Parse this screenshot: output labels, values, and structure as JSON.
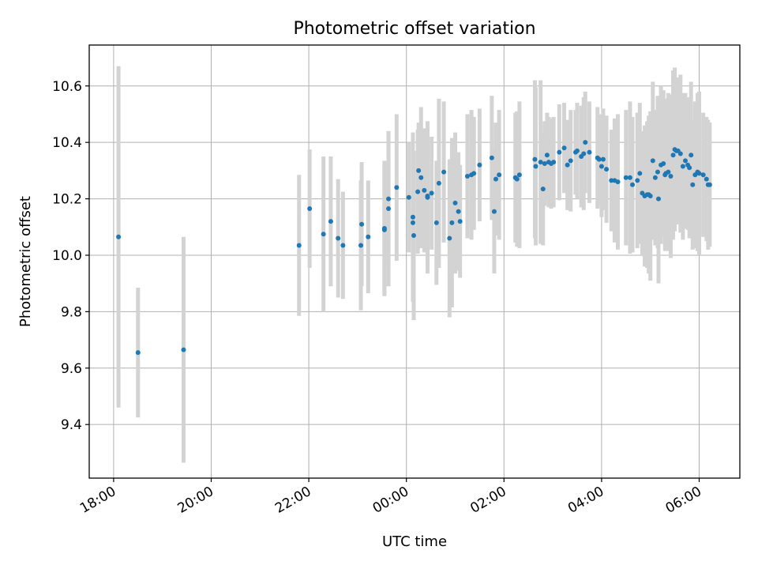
{
  "chart_data": {
    "type": "scatter",
    "title": "Photometric offset variation",
    "xlabel": "UTC time",
    "ylabel": "Photometric offset",
    "x_is_time": true,
    "xlim": [
      "17:30",
      "30:50"
    ],
    "ylim": [
      9.21,
      10.745
    ],
    "grid": true,
    "x_ticks": [
      "18:00",
      "20:00",
      "22:00",
      "00:00",
      "02:00",
      "04:00",
      "06:00"
    ],
    "x_tick_values": [
      "18:00",
      "20:00",
      "22:00",
      "24:00",
      "26:00",
      "28:00",
      "30:00"
    ],
    "y_ticks": [
      "9.4",
      "9.6",
      "9.8",
      "10.0",
      "10.2",
      "10.4",
      "10.6"
    ],
    "y_tick_values": [
      9.4,
      9.6,
      9.8,
      10.0,
      10.2,
      10.4,
      10.6
    ],
    "colors": {
      "points": "#1f77b4",
      "error_bars": "#d3d3d3",
      "grid": "#b0b0b0"
    },
    "series": [
      {
        "x": [
          "18:06",
          "18:30",
          "19:26",
          "21:48",
          "22:01",
          "22:18",
          "22:27",
          "22:36",
          "22:42",
          "23:04",
          "23:05",
          "23:13",
          "23:33",
          "23:33",
          "23:38",
          "23:38",
          "23:48",
          "24:03",
          "24:08",
          "24:08",
          "24:09",
          "24:14",
          "24:15",
          "24:18",
          "24:22",
          "24:26",
          "24:26",
          "24:31",
          "24:37",
          "24:40",
          "24:46",
          "24:53",
          "24:56",
          "25:00",
          "25:04",
          "25:06",
          "25:15",
          "25:20",
          "25:23",
          "25:30",
          "25:45",
          "25:48",
          "25:50",
          "25:54",
          "26:14",
          "26:16",
          "26:19",
          "26:38",
          "26:39",
          "26:45",
          "26:48",
          "26:50",
          "26:53",
          "26:55",
          "26:58",
          "27:01",
          "27:08",
          "27:14",
          "27:18",
          "27:22",
          "27:28",
          "27:30",
          "27:35",
          "27:38",
          "27:40",
          "27:45",
          "27:55",
          "27:57",
          "28:00",
          "28:02",
          "28:06",
          "28:12",
          "28:16",
          "28:20",
          "28:30",
          "28:35",
          "28:38",
          "28:44",
          "28:47",
          "28:50",
          "28:53",
          "28:56",
          "28:58",
          "29:00",
          "29:03",
          "29:06",
          "29:09",
          "29:10",
          "29:13",
          "29:16",
          "29:18",
          "29:19",
          "29:22",
          "29:25",
          "29:28",
          "29:30",
          "29:32",
          "29:34",
          "29:37",
          "29:40",
          "29:43",
          "29:46",
          "29:48",
          "29:50",
          "29:52",
          "29:55",
          "29:58",
          "30:00",
          "30:05",
          "30:09",
          "30:11",
          "30:13"
        ],
        "y": [
          10.065,
          9.655,
          9.665,
          10.035,
          10.165,
          10.075,
          10.12,
          10.06,
          10.035,
          10.035,
          10.11,
          10.065,
          10.09,
          10.095,
          10.165,
          10.2,
          10.24,
          10.205,
          10.115,
          10.135,
          10.07,
          10.225,
          10.3,
          10.275,
          10.23,
          10.21,
          10.205,
          10.22,
          10.115,
          10.255,
          10.295,
          10.06,
          10.115,
          10.185,
          10.155,
          10.12,
          10.28,
          10.285,
          10.29,
          10.32,
          10.345,
          10.155,
          10.27,
          10.285,
          10.275,
          10.27,
          10.285,
          10.34,
          10.315,
          10.33,
          10.235,
          10.325,
          10.355,
          10.33,
          10.325,
          10.33,
          10.365,
          10.38,
          10.32,
          10.335,
          10.365,
          10.37,
          10.35,
          10.36,
          10.4,
          10.365,
          10.345,
          10.34,
          10.315,
          10.34,
          10.305,
          10.265,
          10.265,
          10.26,
          10.275,
          10.275,
          10.25,
          10.265,
          10.29,
          10.22,
          10.21,
          10.215,
          10.215,
          10.21,
          10.335,
          10.275,
          10.295,
          10.2,
          10.32,
          10.325,
          10.285,
          10.29,
          10.295,
          10.28,
          10.355,
          10.375,
          10.37,
          10.37,
          10.36,
          10.315,
          10.335,
          10.32,
          10.31,
          10.355,
          10.25,
          10.285,
          10.295,
          10.29,
          10.285,
          10.27,
          10.25,
          10.25
        ],
        "err": [
          0.605,
          0.23,
          0.4,
          0.25,
          0.21,
          0.275,
          0.23,
          0.21,
          0.19,
          0.23,
          0.22,
          0.2,
          0.23,
          0.24,
          0.275,
          0.24,
          0.26,
          0.195,
          0.2,
          0.3,
          0.3,
          0.22,
          0.17,
          0.25,
          0.22,
          0.24,
          0.27,
          0.2,
          0.22,
          0.3,
          0.25,
          0.28,
          0.3,
          0.25,
          0.21,
          0.2,
          0.22,
          0.23,
          0.2,
          0.2,
          0.22,
          0.22,
          0.2,
          0.23,
          0.23,
          0.24,
          0.26,
          0.28,
          0.28,
          0.29,
          0.2,
          0.15,
          0.15,
          0.16,
          0.16,
          0.16,
          0.17,
          0.16,
          0.16,
          0.18,
          0.15,
          0.17,
          0.18,
          0.2,
          0.18,
          0.18,
          0.18,
          0.16,
          0.18,
          0.18,
          0.19,
          0.18,
          0.22,
          0.24,
          0.24,
          0.27,
          0.24,
          0.24,
          0.25,
          0.22,
          0.25,
          0.26,
          0.28,
          0.3,
          0.28,
          0.24,
          0.27,
          0.3,
          0.28,
          0.26,
          0.27,
          0.26,
          0.28,
          0.29,
          0.3,
          0.29,
          0.26,
          0.26,
          0.28,
          0.26,
          0.24,
          0.23,
          0.25,
          0.26,
          0.23,
          0.26,
          0.28,
          0.29,
          0.22,
          0.22,
          0.23,
          0.22
        ]
      }
    ]
  }
}
